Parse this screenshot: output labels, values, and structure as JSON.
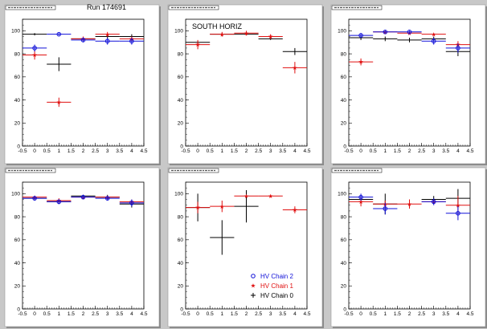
{
  "run_label": "Run 174691",
  "colors": {
    "chain2": "#1010d8",
    "chain1": "#e01010",
    "chain0": "#000000",
    "frame": "#000000",
    "pad_bg": "#ffffff",
    "canvas_bg": "#c8c8c8"
  },
  "legend": {
    "entries": [
      {
        "series": "chain2",
        "label": "HV Chain 2",
        "marker": "open-circle"
      },
      {
        "series": "chain1",
        "label": "HV Chain 1",
        "marker": "star"
      },
      {
        "series": "chain0",
        "label": "HV Chain 0",
        "marker": "plus"
      }
    ]
  },
  "chart_data": [
    {
      "type": "scatter",
      "title": "",
      "annotation": "",
      "xlim": [
        -0.5,
        4.5
      ],
      "ylim": [
        0,
        110
      ],
      "xticks": [
        -0.5,
        0,
        0.5,
        1,
        1.5,
        2,
        2.5,
        3,
        3.5,
        4,
        4.5
      ],
      "yticks": [
        0,
        20,
        40,
        60,
        80,
        100
      ],
      "series": [
        {
          "key": "chain2",
          "points": [
            {
              "x": 0,
              "y": 85,
              "ey": 3
            },
            {
              "x": 1,
              "y": 97,
              "ey": 1
            },
            {
              "x": 2,
              "y": 92,
              "ey": 2
            },
            {
              "x": 3,
              "y": 91,
              "ey": 3
            },
            {
              "x": 4,
              "y": 91,
              "ey": 3
            }
          ]
        },
        {
          "key": "chain1",
          "points": [
            {
              "x": 0,
              "y": 79,
              "ey": 4
            },
            {
              "x": 1,
              "y": 38,
              "ey": 4
            },
            {
              "x": 2,
              "y": 93,
              "ey": 2
            },
            {
              "x": 3,
              "y": 97,
              "ey": 2
            },
            {
              "x": 4,
              "y": 93,
              "ey": 2
            }
          ]
        },
        {
          "key": "chain0",
          "points": [
            {
              "x": 0,
              "y": 97,
              "ey": 1
            },
            {
              "x": 1,
              "y": 71,
              "ey": 6
            },
            {
              "x": 2,
              "y": 93,
              "ey": 1
            },
            {
              "x": 3,
              "y": 95,
              "ey": 2
            },
            {
              "x": 4,
              "y": 95,
              "ey": 2
            }
          ]
        }
      ]
    },
    {
      "type": "scatter",
      "title": "",
      "annotation": "SOUTH HORIZ",
      "xlim": [
        -0.5,
        4.5
      ],
      "ylim": [
        0,
        110
      ],
      "xticks": [
        -0.5,
        0,
        0.5,
        1,
        1.5,
        2,
        2.5,
        3,
        3.5,
        4,
        4.5
      ],
      "yticks": [
        0,
        20,
        40,
        60,
        80,
        100
      ],
      "series": [
        {
          "key": "chain2",
          "points": []
        },
        {
          "key": "chain1",
          "points": [
            {
              "x": 0,
              "y": 88,
              "ey": 4
            },
            {
              "x": 1,
              "y": 97,
              "ey": 2
            },
            {
              "x": 2,
              "y": 98,
              "ey": 2
            },
            {
              "x": 3,
              "y": 95,
              "ey": 2
            },
            {
              "x": 4,
              "y": 68,
              "ey": 5
            }
          ]
        },
        {
          "key": "chain0",
          "points": [
            {
              "x": 0,
              "y": 90,
              "ey": 1
            },
            {
              "x": 1,
              "y": 97,
              "ey": 1
            },
            {
              "x": 2,
              "y": 97,
              "ey": 1
            },
            {
              "x": 3,
              "y": 93,
              "ey": 1
            },
            {
              "x": 4,
              "y": 82,
              "ey": 3
            }
          ]
        }
      ]
    },
    {
      "type": "scatter",
      "title": "",
      "annotation": "",
      "xlim": [
        -0.5,
        4.5
      ],
      "ylim": [
        0,
        110
      ],
      "xticks": [
        -0.5,
        0,
        0.5,
        1,
        1.5,
        2,
        2.5,
        3,
        3.5,
        4,
        4.5
      ],
      "yticks": [
        0,
        20,
        40,
        60,
        80,
        100
      ],
      "series": [
        {
          "key": "chain2",
          "points": [
            {
              "x": 0,
              "y": 96,
              "ey": 2
            },
            {
              "x": 1,
              "y": 99,
              "ey": 1
            },
            {
              "x": 2,
              "y": 99,
              "ey": 1
            },
            {
              "x": 3,
              "y": 91,
              "ey": 3
            },
            {
              "x": 4,
              "y": 85,
              "ey": 4
            }
          ]
        },
        {
          "key": "chain1",
          "points": [
            {
              "x": 0,
              "y": 73,
              "ey": 3
            },
            {
              "x": 1,
              "y": 99,
              "ey": 1
            },
            {
              "x": 2,
              "y": 98,
              "ey": 1
            },
            {
              "x": 3,
              "y": 97,
              "ey": 1
            },
            {
              "x": 4,
              "y": 88,
              "ey": 3
            }
          ]
        },
        {
          "key": "chain0",
          "points": [
            {
              "x": 0,
              "y": 94,
              "ey": 2
            },
            {
              "x": 1,
              "y": 93,
              "ey": 2
            },
            {
              "x": 2,
              "y": 92,
              "ey": 2
            },
            {
              "x": 3,
              "y": 93,
              "ey": 2
            },
            {
              "x": 4,
              "y": 82,
              "ey": 4
            }
          ]
        }
      ]
    },
    {
      "type": "scatter",
      "title": "",
      "annotation": "",
      "xlim": [
        -0.5,
        4.5
      ],
      "ylim": [
        0,
        110
      ],
      "xticks": [
        -0.5,
        0,
        0.5,
        1,
        1.5,
        2,
        2.5,
        3,
        3.5,
        4,
        4.5
      ],
      "yticks": [
        0,
        20,
        40,
        60,
        80,
        100
      ],
      "series": [
        {
          "key": "chain2",
          "points": [
            {
              "x": 0,
              "y": 96,
              "ey": 2
            },
            {
              "x": 1,
              "y": 93,
              "ey": 2
            },
            {
              "x": 2,
              "y": 97,
              "ey": 2
            },
            {
              "x": 3,
              "y": 96,
              "ey": 2
            },
            {
              "x": 4,
              "y": 92,
              "ey": 3
            }
          ]
        },
        {
          "key": "chain1",
          "points": [
            {
              "x": 0,
              "y": 97,
              "ey": 1
            },
            {
              "x": 1,
              "y": 94,
              "ey": 2
            },
            {
              "x": 2,
              "y": 97,
              "ey": 1
            },
            {
              "x": 3,
              "y": 97,
              "ey": 1
            },
            {
              "x": 4,
              "y": 93,
              "ey": 2
            }
          ]
        },
        {
          "key": "chain0",
          "points": [
            {
              "x": 0,
              "y": 96,
              "ey": 2
            },
            {
              "x": 1,
              "y": 93,
              "ey": 2
            },
            {
              "x": 2,
              "y": 98,
              "ey": 1
            },
            {
              "x": 3,
              "y": 97,
              "ey": 2
            },
            {
              "x": 4,
              "y": 91,
              "ey": 3
            }
          ]
        }
      ]
    },
    {
      "type": "scatter",
      "title": "",
      "annotation": "",
      "xlim": [
        -0.5,
        4.5
      ],
      "ylim": [
        0,
        110
      ],
      "xticks": [
        -0.5,
        0,
        0.5,
        1,
        1.5,
        2,
        2.5,
        3,
        3.5,
        4,
        4.5
      ],
      "yticks": [
        0,
        20,
        40,
        60,
        80,
        100
      ],
      "show_legend": true,
      "series": [
        {
          "key": "chain2",
          "points": []
        },
        {
          "key": "chain1",
          "points": [
            {
              "x": 0,
              "y": 88,
              "ey": 5
            },
            {
              "x": 1,
              "y": 89,
              "ey": 5
            },
            {
              "x": 2,
              "y": 98,
              "ey": 1
            },
            {
              "x": 3,
              "y": 98,
              "ey": 1
            },
            {
              "x": 4,
              "y": 86,
              "ey": 3
            }
          ]
        },
        {
          "key": "chain0",
          "points": [
            {
              "x": 0,
              "y": 88,
              "ey": 12
            },
            {
              "x": 1,
              "y": 62,
              "ey": 15
            },
            {
              "x": 2,
              "y": 89,
              "ey": 14
            }
          ]
        }
      ]
    },
    {
      "type": "scatter",
      "title": "",
      "annotation": "",
      "xlim": [
        -0.5,
        4.5
      ],
      "ylim": [
        0,
        110
      ],
      "xticks": [
        -0.5,
        0,
        0.5,
        1,
        1.5,
        2,
        2.5,
        3,
        3.5,
        4,
        4.5
      ],
      "yticks": [
        0,
        20,
        40,
        60,
        80,
        100
      ],
      "series": [
        {
          "key": "chain2",
          "points": [
            {
              "x": 0,
              "y": 97,
              "ey": 3
            },
            {
              "x": 1,
              "y": 87,
              "ey": 5
            },
            {
              "x": 3,
              "y": 93,
              "ey": 3
            },
            {
              "x": 4,
              "y": 83,
              "ey": 6
            }
          ]
        },
        {
          "key": "chain1",
          "points": [
            {
              "x": 0,
              "y": 93,
              "ey": 4
            },
            {
              "x": 1,
              "y": 91,
              "ey": 3
            },
            {
              "x": 2,
              "y": 91,
              "ey": 4
            },
            {
              "x": 3,
              "y": 93,
              "ey": 2
            },
            {
              "x": 4,
              "y": 90,
              "ey": 8
            }
          ]
        },
        {
          "key": "chain0",
          "points": [
            {
              "x": 0,
              "y": 95,
              "ey": 3
            },
            {
              "x": 1,
              "y": 91,
              "ey": 9
            },
            {
              "x": 3,
              "y": 95,
              "ey": 3
            },
            {
              "x": 4,
              "y": 96,
              "ey": 8
            }
          ]
        }
      ]
    }
  ]
}
